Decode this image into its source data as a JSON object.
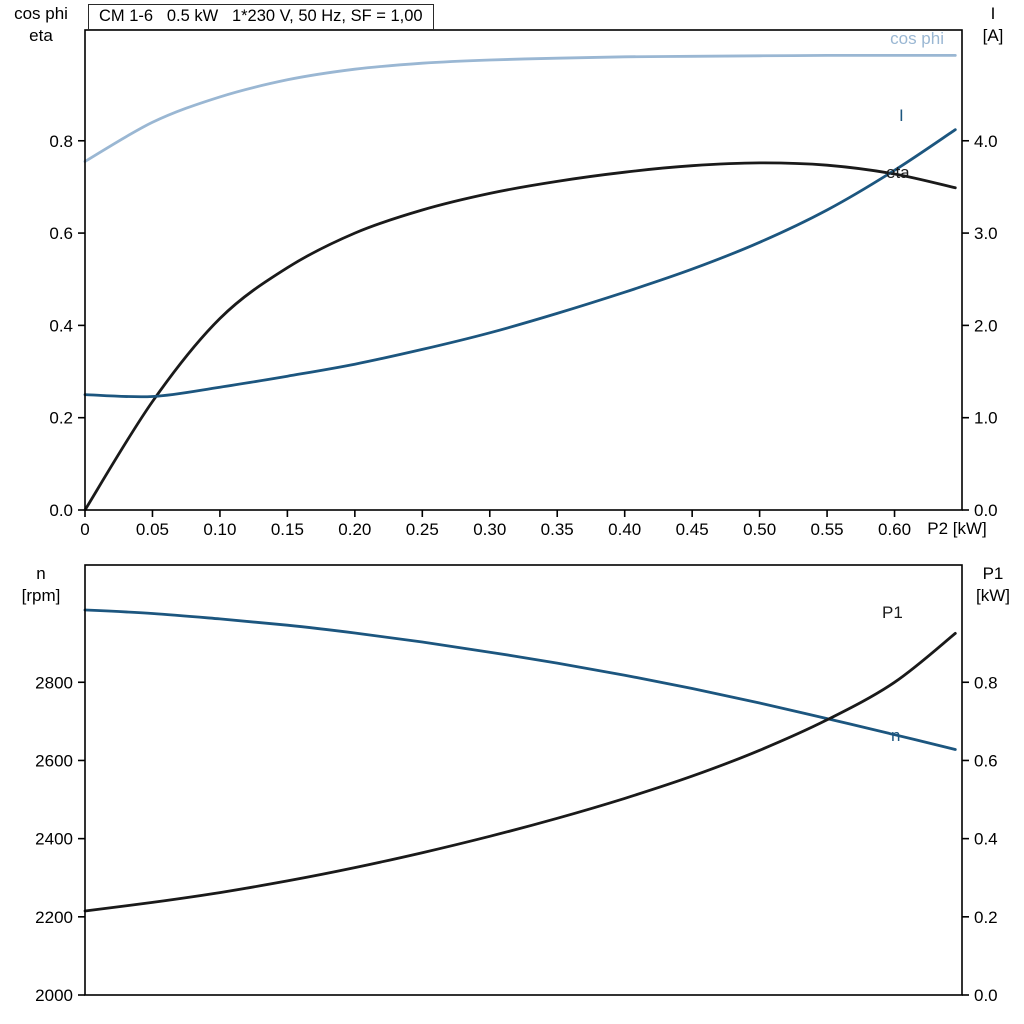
{
  "colors": {
    "curve_dark_blue": "#1c567f",
    "curve_light_blue": "#9ab7d3",
    "curve_black": "#1a1a1a",
    "frame": "#000000"
  },
  "chart_data": [
    {
      "type": "line",
      "title": "CM 1-6   0.5 kW   1*230 V, 50 Hz, SF = 1,00",
      "xlabel": "P2 [kW]",
      "axis_label_left": [
        "cos phi",
        "eta"
      ],
      "axis_label_right": [
        "I",
        "[A]"
      ],
      "xlim": [
        0,
        0.65
      ],
      "xtick_values": [
        0,
        0.05,
        0.1,
        0.15,
        0.2,
        0.25,
        0.3,
        0.35,
        0.4,
        0.45,
        0.5,
        0.55,
        0.6
      ],
      "xtick_labels": [
        "0",
        "0.05",
        "0.10",
        "0.15",
        "0.20",
        "0.25",
        "0.30",
        "0.35",
        "0.40",
        "0.45",
        "0.50",
        "0.55",
        "0.60"
      ],
      "ylim_left": [
        0,
        1.04
      ],
      "ytick_values_left": [
        0,
        0.2,
        0.4,
        0.6,
        0.8
      ],
      "ytick_labels_left": [
        "0.0",
        "0.2",
        "0.4",
        "0.6",
        "0.8"
      ],
      "ylim_right": [
        0,
        5.2
      ],
      "ytick_values_right": [
        0,
        1,
        2,
        3,
        4
      ],
      "ytick_labels_right": [
        "0.0",
        "1.0",
        "2.0",
        "3.0",
        "4.0"
      ],
      "show_x_ticks": true,
      "grid": false,
      "series": [
        {
          "name": "cos phi",
          "axis": "left",
          "color_key": "curve_light_blue",
          "x": [
            0,
            0.05,
            0.1,
            0.15,
            0.2,
            0.25,
            0.3,
            0.35,
            0.4,
            0.45,
            0.5,
            0.55,
            0.6,
            0.645
          ],
          "y": [
            0.755,
            0.84,
            0.895,
            0.932,
            0.955,
            0.968,
            0.975,
            0.979,
            0.982,
            0.983,
            0.984,
            0.985,
            0.985,
            0.985
          ]
        },
        {
          "name": "eta",
          "axis": "left",
          "color_key": "curve_black",
          "x": [
            0,
            0.05,
            0.1,
            0.15,
            0.2,
            0.25,
            0.3,
            0.35,
            0.4,
            0.45,
            0.5,
            0.55,
            0.6,
            0.645
          ],
          "y": [
            0.0,
            0.235,
            0.415,
            0.525,
            0.6,
            0.65,
            0.686,
            0.712,
            0.732,
            0.746,
            0.752,
            0.747,
            0.728,
            0.698
          ]
        },
        {
          "name": "I",
          "axis": "right",
          "color_key": "curve_dark_blue",
          "x": [
            0,
            0.05,
            0.1,
            0.15,
            0.2,
            0.25,
            0.3,
            0.35,
            0.4,
            0.45,
            0.5,
            0.55,
            0.6,
            0.645
          ],
          "y": [
            1.25,
            1.23,
            1.33,
            1.45,
            1.58,
            1.74,
            1.92,
            2.13,
            2.36,
            2.61,
            2.9,
            3.25,
            3.68,
            4.12
          ]
        }
      ]
    },
    {
      "type": "line",
      "title": "",
      "xlabel": "",
      "axis_label_left": [
        "n",
        "[rpm]"
      ],
      "axis_label_right": [
        "P1",
        "[kW]"
      ],
      "xlim": [
        0,
        0.65
      ],
      "xtick_values": [],
      "xtick_labels": [],
      "ylim_left": [
        2000,
        3100
      ],
      "ytick_values_left": [
        2000,
        2200,
        2400,
        2600,
        2800
      ],
      "ytick_labels_left": [
        "2000",
        "2200",
        "2400",
        "2600",
        "2800"
      ],
      "ylim_right": [
        0,
        1.1
      ],
      "ytick_values_right": [
        0,
        0.2,
        0.4,
        0.6,
        0.8
      ],
      "ytick_labels_right": [
        "0.0",
        "0.2",
        "0.4",
        "0.6",
        "0.8"
      ],
      "show_x_ticks": false,
      "grid": false,
      "series": [
        {
          "name": "n",
          "axis": "left",
          "color_key": "curve_dark_blue",
          "x": [
            0,
            0.05,
            0.1,
            0.15,
            0.2,
            0.25,
            0.3,
            0.35,
            0.4,
            0.45,
            0.5,
            0.55,
            0.6,
            0.645
          ],
          "y": [
            2985,
            2976,
            2962,
            2946,
            2926,
            2903,
            2877,
            2849,
            2818,
            2784,
            2747,
            2707,
            2666,
            2628
          ]
        },
        {
          "name": "P1",
          "axis": "right",
          "color_key": "curve_black",
          "x": [
            0,
            0.05,
            0.1,
            0.15,
            0.2,
            0.25,
            0.3,
            0.35,
            0.4,
            0.45,
            0.5,
            0.55,
            0.6,
            0.645
          ],
          "y": [
            0.215,
            0.237,
            0.262,
            0.292,
            0.326,
            0.364,
            0.406,
            0.452,
            0.503,
            0.56,
            0.626,
            0.704,
            0.8,
            0.925
          ]
        }
      ]
    }
  ]
}
